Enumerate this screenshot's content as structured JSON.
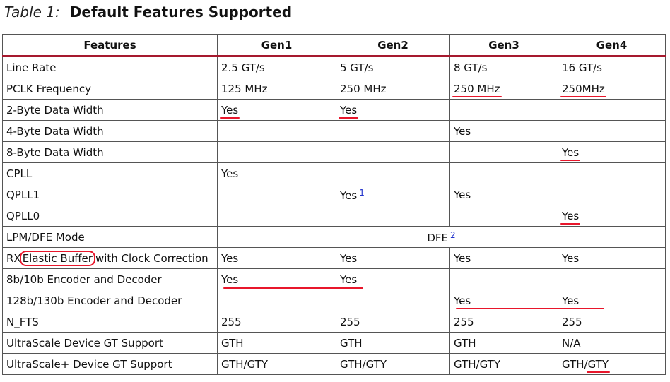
{
  "caption": {
    "number": "Table 1:",
    "title": "Default Features Supported"
  },
  "table": {
    "headers": [
      "Features",
      "Gen1",
      "Gen2",
      "Gen3",
      "Gen4"
    ],
    "rows": [
      [
        "Line Rate",
        "2.5 GT/s",
        "5 GT/s",
        "8 GT/s",
        "16 GT/s"
      ],
      [
        "PCLK Frequency",
        "125 MHz",
        "250 MHz",
        "250 MHz",
        "250MHz"
      ],
      [
        "2-Byte Data Width",
        "Yes",
        "Yes",
        "",
        ""
      ],
      [
        "4-Byte Data Width",
        "",
        "",
        "Yes",
        ""
      ],
      [
        "8-Byte Data Width",
        "",
        "",
        "",
        "Yes"
      ],
      [
        "CPLL",
        "Yes",
        "",
        "",
        ""
      ],
      [
        "QPLL1",
        "",
        "Yes",
        "Yes",
        ""
      ],
      [
        "QPLL0",
        "",
        "",
        "",
        "Yes"
      ],
      [
        "LPM/DFE Mode",
        "DFE"
      ],
      [
        "RX Elastic Buffer with Clock Correction",
        "Yes",
        "Yes",
        "Yes",
        "Yes"
      ],
      [
        "8b/10b Encoder and Decoder",
        "Yes",
        "Yes",
        "",
        ""
      ],
      [
        "128b/130b Encoder and Decoder",
        "",
        "",
        "Yes",
        "Yes"
      ],
      [
        "N_FTS",
        "255",
        "255",
        "255",
        "255"
      ],
      [
        "UltraScale Device GT Support",
        "GTH",
        "GTH",
        "GTH",
        "N/A"
      ],
      [
        "UltraScale+ Device GT Support",
        "GTH/GTY",
        "GTH/GTY",
        "GTH/GTY",
        "GTH/GTY"
      ]
    ],
    "footnotes": {
      "qpll1_gen2": "1",
      "lpm_dfe": "2"
    },
    "rx_elastic_parts": {
      "pre": "RX",
      "circled": "Elastic Buffer",
      "post": "with Clock Correction"
    },
    "gty_parts": {
      "pre": "GTH/",
      "marked": "GTY"
    }
  },
  "annotation_color": "#e8162b",
  "header_rule_color": "#a6192e",
  "footnote_color": "#2233cc"
}
